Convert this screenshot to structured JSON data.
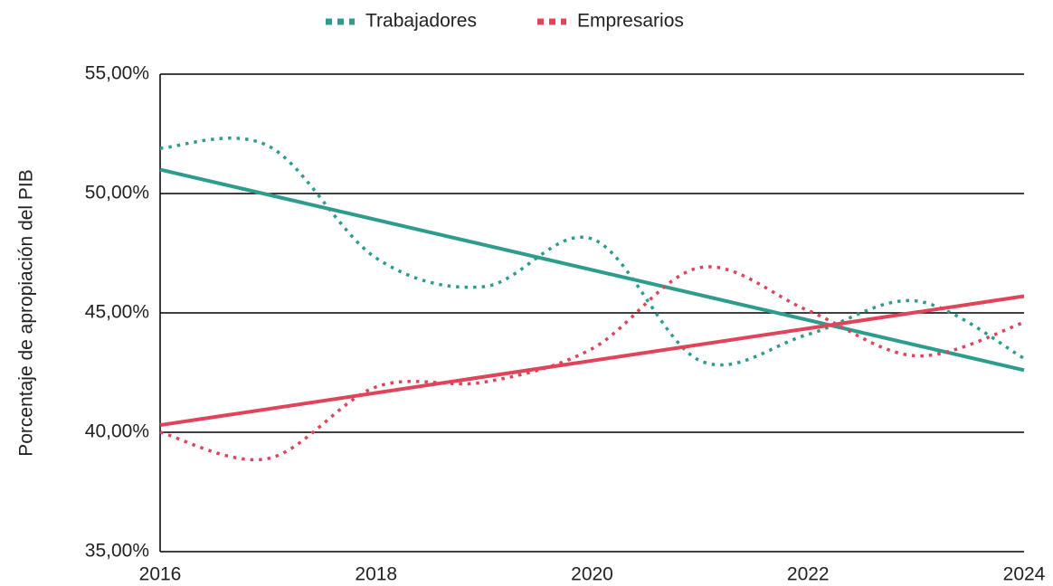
{
  "chart_data": {
    "type": "line",
    "y_label": "Porcentaje de apropiación del PIB",
    "x": [
      2016,
      2017,
      2018,
      2019,
      2020,
      2021,
      2022,
      2023,
      2024
    ],
    "series": [
      {
        "name": "Trabajadores",
        "color": "#2e9c8c",
        "values": [
          51.9,
          52.0,
          47.3,
          46.1,
          48.1,
          43.0,
          44.1,
          45.5,
          43.1
        ],
        "trend": [
          51.0,
          42.6
        ]
      },
      {
        "name": "Empresarios",
        "color": "#e0435a",
        "values": [
          40.0,
          38.9,
          41.9,
          42.1,
          43.5,
          46.9,
          45.1,
          43.2,
          44.6
        ],
        "trend": [
          40.3,
          45.7
        ]
      }
    ],
    "xlim": [
      2016,
      2024
    ],
    "xticks": [
      2016,
      2018,
      2020,
      2022,
      2024
    ],
    "ylim": [
      35,
      55
    ],
    "yticks": [
      {
        "value": 35,
        "label": "35,00%"
      },
      {
        "value": 40,
        "label": "40,00%"
      },
      {
        "value": 45,
        "label": "45,00%"
      },
      {
        "value": 50,
        "label": "50,00%"
      },
      {
        "value": 55,
        "label": "55,00%"
      }
    ],
    "grid": true,
    "smooth": true,
    "legend": "top"
  }
}
